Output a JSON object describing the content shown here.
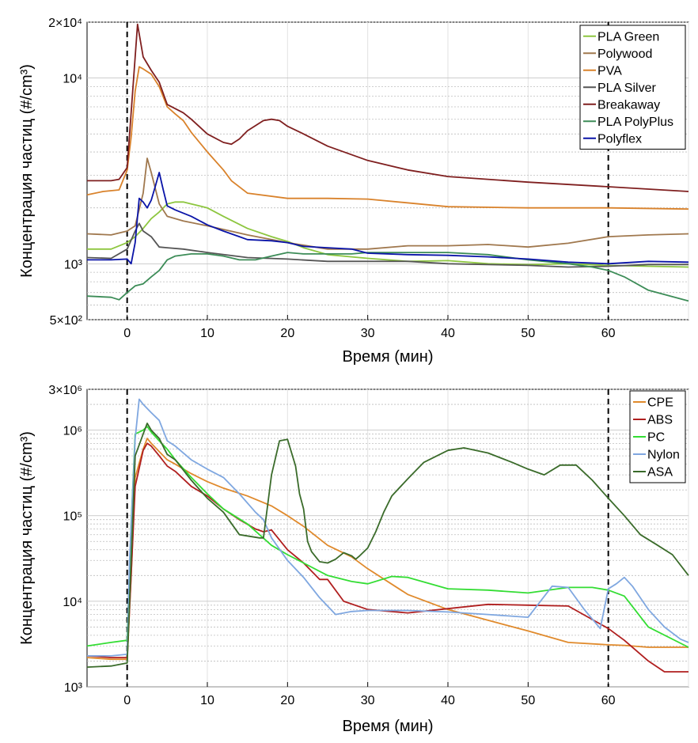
{
  "chart_data": [
    {
      "type": "line",
      "xlabel": "Время (мин)",
      "ylabel": "Концентрация частиц (#/cm³)",
      "xlim": [
        -5,
        70
      ],
      "ylim": [
        500,
        20000
      ],
      "yscale": "log",
      "x_ticks": [
        "0",
        "10",
        "20",
        "30",
        "40",
        "50",
        "60"
      ],
      "y_ticks": [
        "5×10²",
        "10³",
        "10⁴",
        "2×10⁴"
      ],
      "vlines": [
        0,
        60
      ],
      "grid": true,
      "legend_position": "top-right",
      "series": [
        {
          "name": "PLA Green",
          "color": "#8dc63f",
          "x": [
            -5,
            -2,
            0,
            1,
            2,
            3,
            4,
            5,
            6,
            7,
            8,
            10,
            12,
            15,
            18,
            20,
            22,
            25,
            30,
            35,
            40,
            45,
            50,
            55,
            60,
            65,
            70
          ],
          "y": [
            1200,
            1200,
            1300,
            1400,
            1550,
            1750,
            1900,
            2100,
            2150,
            2150,
            2100,
            2000,
            1800,
            1550,
            1400,
            1320,
            1220,
            1120,
            1070,
            1030,
            1040,
            1000,
            990,
            1000,
            980,
            970,
            960
          ]
        },
        {
          "name": "Polywood",
          "color": "#a0784e",
          "x": [
            -5,
            -2,
            0,
            1,
            2,
            2.5,
            3,
            4,
            5,
            7,
            10,
            15,
            20,
            25,
            30,
            35,
            40,
            45,
            50,
            55,
            60,
            65,
            70
          ],
          "y": [
            1450,
            1430,
            1500,
            1600,
            2400,
            3700,
            3100,
            2100,
            1800,
            1700,
            1600,
            1430,
            1300,
            1200,
            1200,
            1250,
            1250,
            1270,
            1230,
            1290,
            1400,
            1430,
            1450
          ]
        },
        {
          "name": "PVA",
          "color": "#d9822b",
          "x": [
            -5,
            -3,
            -1,
            0,
            0.5,
            1,
            1.5,
            2,
            3,
            4,
            5,
            6,
            7,
            8,
            10,
            12,
            13,
            15,
            20,
            25,
            30,
            40,
            50,
            60,
            70
          ],
          "y": [
            2350,
            2450,
            2500,
            3200,
            4800,
            8500,
            11500,
            11200,
            10500,
            9000,
            7000,
            6400,
            5900,
            5100,
            4000,
            3200,
            2800,
            2400,
            2250,
            2250,
            2230,
            2030,
            2000,
            2000,
            1970
          ]
        },
        {
          "name": "PLA Silver",
          "color": "#555555",
          "x": [
            -5,
            -2,
            0,
            1,
            1.5,
            2,
            3,
            4,
            5,
            7,
            10,
            15,
            20,
            25,
            30,
            35,
            40,
            45,
            50,
            55,
            60,
            65,
            70
          ],
          "y": [
            1080,
            1070,
            1200,
            1500,
            1650,
            1500,
            1400,
            1230,
            1220,
            1200,
            1150,
            1080,
            1060,
            1030,
            1030,
            1030,
            1000,
            990,
            980,
            960,
            970,
            990,
            990
          ]
        },
        {
          "name": "Breakaway",
          "color": "#7f1f1f",
          "x": [
            -5,
            -2,
            -1,
            0,
            0.5,
            1,
            1.3,
            2,
            3,
            4,
            5,
            7,
            8,
            10,
            12,
            13,
            14,
            15,
            17,
            18,
            19,
            20,
            22,
            25,
            30,
            35,
            40,
            50,
            60,
            70
          ],
          "y": [
            2800,
            2800,
            2850,
            3300,
            6500,
            13000,
            19500,
            13000,
            11000,
            9500,
            7200,
            6500,
            6000,
            5000,
            4500,
            4400,
            4700,
            5200,
            5900,
            6000,
            5900,
            5500,
            5000,
            4300,
            3600,
            3200,
            2950,
            2750,
            2600,
            2450
          ]
        },
        {
          "name": "PLA PolyPlus",
          "color": "#3c8c57",
          "x": [
            -5,
            -2,
            -1,
            0,
            1,
            2,
            3,
            4,
            5,
            6,
            8,
            10,
            12,
            14,
            16,
            18,
            20,
            22,
            25,
            28,
            30,
            35,
            40,
            45,
            50,
            55,
            58,
            60,
            62,
            65,
            70
          ],
          "y": [
            670,
            660,
            640,
            700,
            760,
            780,
            850,
            920,
            1050,
            1100,
            1130,
            1130,
            1100,
            1050,
            1050,
            1100,
            1150,
            1130,
            1130,
            1130,
            1150,
            1150,
            1150,
            1120,
            1050,
            1000,
            960,
            920,
            850,
            720,
            630
          ]
        },
        {
          "name": "Polyflex",
          "color": "#0a14a8",
          "x": [
            -5,
            -2,
            0,
            0.5,
            1,
            1.5,
            2,
            2.5,
            3,
            3.5,
            4,
            4.5,
            5,
            6,
            8,
            10,
            12,
            14,
            15,
            18,
            20,
            22,
            25,
            28,
            30,
            35,
            40,
            45,
            50,
            55,
            60,
            65,
            70
          ],
          "y": [
            1050,
            1050,
            1060,
            1000,
            1300,
            2250,
            2150,
            2000,
            2200,
            2600,
            3100,
            2500,
            2050,
            1950,
            1800,
            1620,
            1500,
            1400,
            1350,
            1330,
            1300,
            1240,
            1220,
            1200,
            1140,
            1120,
            1110,
            1090,
            1060,
            1020,
            1000,
            1030,
            1020
          ]
        }
      ]
    },
    {
      "type": "line",
      "xlabel": "Время (мин)",
      "ylabel": "Концентрация частиц (#/cm³)",
      "xlim": [
        -5,
        70
      ],
      "ylim": [
        1000,
        3000000
      ],
      "yscale": "log",
      "x_ticks": [
        "0",
        "10",
        "20",
        "30",
        "40",
        "50",
        "60"
      ],
      "y_ticks": [
        "10³",
        "10⁴",
        "10⁵",
        "10⁶",
        "3×10⁶"
      ],
      "vlines": [
        0,
        60
      ],
      "grid": true,
      "legend_position": "top-right",
      "series": [
        {
          "name": "CPE",
          "color": "#e08a2c",
          "x": [
            -5,
            -2,
            0,
            0.5,
            1,
            2,
            2.5,
            3,
            4,
            5,
            6,
            8,
            10,
            12,
            15,
            18,
            20,
            22,
            25,
            28,
            30,
            35,
            40,
            45,
            50,
            55,
            60,
            62,
            65,
            70
          ],
          "y": [
            2200,
            2100,
            2100,
            20000,
            280000,
            600000,
            800000,
            700000,
            560000,
            450000,
            400000,
            310000,
            250000,
            210000,
            170000,
            130000,
            100000,
            75000,
            45000,
            33000,
            24000,
            12000,
            8000,
            6000,
            4500,
            3300,
            3100,
            3050,
            2900,
            2900
          ]
        },
        {
          "name": "ABS",
          "color": "#b01f1f",
          "x": [
            -5,
            -2,
            0,
            0.5,
            1,
            2,
            2.5,
            3,
            4,
            5,
            6,
            8,
            10,
            12,
            14,
            16,
            17,
            18,
            20,
            22,
            24,
            25,
            27,
            30,
            35,
            40,
            45,
            50,
            55,
            60,
            62,
            65,
            67,
            70
          ],
          "y": [
            2300,
            2200,
            2200,
            20000,
            220000,
            580000,
            700000,
            650000,
            500000,
            380000,
            330000,
            220000,
            170000,
            120000,
            90000,
            70000,
            65000,
            68000,
            40000,
            28000,
            18000,
            18000,
            10000,
            8000,
            7300,
            8200,
            9200,
            9000,
            8800,
            4800,
            3500,
            2000,
            1500,
            1500
          ]
        },
        {
          "name": "PC",
          "color": "#33dd33",
          "x": [
            -5,
            -2,
            0,
            0.5,
            1,
            2,
            2.5,
            3,
            4,
            5,
            6,
            8,
            10,
            12,
            15,
            18,
            20,
            22,
            25,
            28,
            30,
            33,
            35,
            40,
            45,
            50,
            55,
            58,
            60,
            62,
            65,
            70
          ],
          "y": [
            3000,
            3300,
            3500,
            80000,
            900000,
            1000000,
            1100000,
            950000,
            750000,
            600000,
            450000,
            280000,
            180000,
            120000,
            80000,
            45000,
            35000,
            28000,
            20000,
            17000,
            16000,
            19500,
            19000,
            14000,
            13500,
            12500,
            14500,
            14500,
            13500,
            11500,
            5000,
            2900
          ]
        },
        {
          "name": "Nylon",
          "color": "#7fa7e0",
          "x": [
            -5,
            -2,
            0,
            0.3,
            1,
            1.5,
            2,
            3,
            4,
            5,
            6,
            8,
            10,
            12,
            14,
            16,
            17,
            18,
            20,
            22,
            24,
            26,
            28,
            30,
            35,
            40,
            45,
            50,
            53,
            55,
            57,
            59,
            60,
            61,
            62,
            63,
            65,
            67,
            69,
            70
          ],
          "y": [
            2300,
            2300,
            2400,
            30000,
            800000,
            2300000,
            2000000,
            1600000,
            1300000,
            750000,
            650000,
            450000,
            350000,
            280000,
            180000,
            110000,
            90000,
            55000,
            30000,
            19000,
            11000,
            7000,
            7600,
            7800,
            7800,
            7500,
            7000,
            6500,
            15000,
            14500,
            8000,
            4800,
            14000,
            16000,
            19000,
            15000,
            8000,
            5000,
            3600,
            3300
          ]
        },
        {
          "name": "ASA",
          "color": "#3a6b2a",
          "x": [
            -5,
            -2,
            0,
            0.5,
            1,
            2,
            2.5,
            3,
            4,
            5,
            6,
            8,
            10,
            12,
            14,
            16.5,
            17,
            18,
            19,
            20,
            21,
            21.5,
            22,
            22.5,
            23,
            24,
            25,
            26,
            27,
            28,
            28.5,
            29,
            30,
            31,
            32,
            33,
            35,
            37,
            40,
            42,
            45,
            48,
            50,
            52,
            54,
            56,
            58,
            60,
            62,
            64,
            66,
            68,
            70
          ],
          "y": [
            1700,
            1750,
            1900,
            30000,
            500000,
            900000,
            1200000,
            1000000,
            800000,
            520000,
            450000,
            260000,
            160000,
            110000,
            60000,
            55000,
            55000,
            300000,
            750000,
            780000,
            380000,
            180000,
            120000,
            50000,
            38000,
            29000,
            28000,
            31000,
            37000,
            34000,
            31000,
            34000,
            42000,
            65000,
            110000,
            170000,
            270000,
            420000,
            580000,
            620000,
            540000,
            420000,
            350000,
            300000,
            390000,
            390000,
            260000,
            160000,
            100000,
            60000,
            46000,
            35000,
            20000
          ]
        }
      ]
    }
  ]
}
